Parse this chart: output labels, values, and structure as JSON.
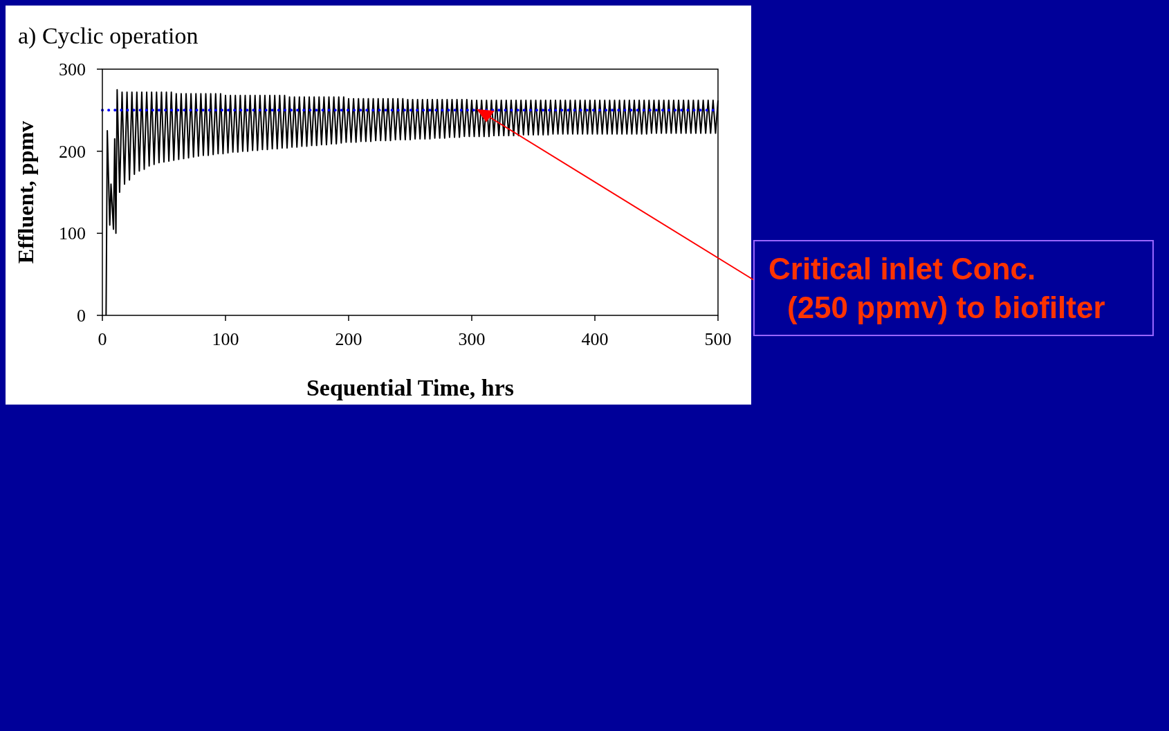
{
  "chart_data": {
    "type": "line",
    "title": "a) Cyclic operation",
    "xlabel": "Sequential Time, hrs",
    "ylabel": "Effluent, ppmv",
    "xlim": [
      0,
      500
    ],
    "ylim": [
      0,
      300
    ],
    "xticks": [
      0,
      100,
      200,
      300,
      400,
      500
    ],
    "yticks": [
      0,
      100,
      200,
      300
    ],
    "series": [
      {
        "color": "#000000",
        "x": [
          3,
          4,
          6,
          7,
          9,
          10,
          11,
          12,
          14,
          16,
          18,
          20,
          22,
          24,
          26,
          28,
          30,
          32,
          34,
          36,
          38,
          40,
          42,
          44,
          46,
          48,
          50,
          52,
          54,
          56,
          58,
          60,
          62,
          64,
          66,
          68,
          70,
          72,
          74,
          76,
          78,
          80,
          82,
          84,
          86,
          88,
          90,
          92,
          94,
          96,
          98,
          100,
          102,
          104,
          106,
          108,
          110,
          112,
          114,
          116,
          118,
          120,
          122,
          124,
          126,
          128,
          130,
          132,
          134,
          136,
          138,
          140,
          142,
          144,
          146,
          148,
          150,
          152,
          154,
          156,
          158,
          160,
          162,
          164,
          166,
          168,
          170,
          172,
          174,
          176,
          178,
          180,
          182,
          184,
          186,
          188,
          190,
          192,
          194,
          196,
          198,
          200,
          202,
          204,
          206,
          208,
          210,
          212,
          214,
          216,
          218,
          220,
          222,
          224,
          226,
          228,
          230,
          232,
          234,
          236,
          238,
          240,
          242,
          244,
          246,
          248,
          250,
          252,
          254,
          256,
          258,
          260,
          262,
          264,
          266,
          268,
          270,
          272,
          274,
          276,
          278,
          280,
          282,
          284,
          286,
          288,
          290,
          292,
          294,
          296,
          298,
          300,
          302,
          304,
          306,
          308,
          310,
          312,
          314,
          316,
          318,
          320,
          322,
          324,
          326,
          328,
          330,
          332,
          334,
          336,
          338,
          340,
          342,
          344,
          346,
          348,
          350,
          352,
          354,
          356,
          358,
          360,
          362,
          364,
          366,
          368,
          370,
          372,
          374,
          376,
          378,
          380,
          382,
          384,
          386,
          388,
          390,
          392,
          394,
          396,
          398,
          400,
          402,
          404,
          406,
          408,
          410,
          412,
          414,
          416,
          418,
          420,
          422,
          424,
          426,
          428,
          430,
          432,
          434,
          436,
          438,
          440,
          442,
          444,
          446,
          448,
          450,
          452,
          454,
          456,
          458,
          460,
          462,
          464,
          466,
          468,
          470,
          472,
          474,
          476,
          478,
          480,
          482,
          484,
          486,
          488,
          490,
          492,
          494,
          496,
          498,
          500
        ],
        "values": [
          0,
          225,
          110,
          160,
          105,
          215,
          100,
          275,
          150,
          272,
          160,
          272,
          165,
          272,
          172,
          272,
          176,
          272,
          178,
          272,
          182,
          272,
          184,
          272,
          186,
          272,
          187,
          272,
          188,
          272,
          189,
          270,
          190,
          270,
          191,
          270,
          192,
          270,
          193,
          270,
          194,
          270,
          195,
          270,
          195,
          270,
          196,
          270,
          197,
          270,
          197,
          268,
          198,
          268,
          199,
          268,
          199,
          268,
          200,
          268,
          200,
          268,
          201,
          268,
          201,
          268,
          202,
          268,
          202,
          268,
          203,
          268,
          203,
          268,
          204,
          268,
          204,
          266,
          205,
          266,
          205,
          266,
          206,
          266,
          206,
          266,
          207,
          266,
          207,
          266,
          208,
          266,
          208,
          266,
          209,
          266,
          209,
          266,
          210,
          266,
          211,
          264,
          211,
          264,
          211,
          264,
          212,
          264,
          212,
          264,
          212,
          264,
          213,
          264,
          213,
          264,
          213,
          264,
          213,
          264,
          214,
          264,
          214,
          264,
          214,
          263,
          214,
          263,
          215,
          263,
          215,
          263,
          215,
          263,
          215,
          263,
          216,
          263,
          216,
          263,
          216,
          263,
          217,
          263,
          217,
          263,
          217,
          263,
          218,
          263,
          218,
          262,
          218,
          262,
          218,
          262,
          218,
          262,
          218,
          262,
          219,
          262,
          219,
          262,
          219,
          262,
          219,
          262,
          219,
          262,
          219,
          262,
          220,
          262,
          220,
          262,
          220,
          262,
          220,
          262,
          220,
          262,
          220,
          262,
          221,
          262,
          221,
          262,
          221,
          262,
          221,
          262,
          221,
          262,
          221,
          262,
          221,
          262,
          221,
          262,
          221,
          262,
          221,
          262,
          221,
          262,
          221,
          262,
          221,
          262,
          221,
          262,
          221,
          262,
          221,
          262,
          221,
          262,
          221,
          262,
          221,
          262,
          221,
          262,
          222,
          262,
          222,
          262,
          222,
          262,
          222,
          262,
          222,
          262,
          222,
          262,
          222,
          262,
          222,
          262,
          222,
          262,
          222,
          262,
          222,
          262,
          222,
          262,
          222,
          262,
          222,
          262
        ]
      }
    ],
    "ref_lines": [
      {
        "axis": "y",
        "value": 250,
        "color": "#0000ff",
        "line_style": "dotted"
      }
    ],
    "annotations": [
      "Critical inlet Conc.\n(250 ppmv) to biofilter"
    ]
  }
}
